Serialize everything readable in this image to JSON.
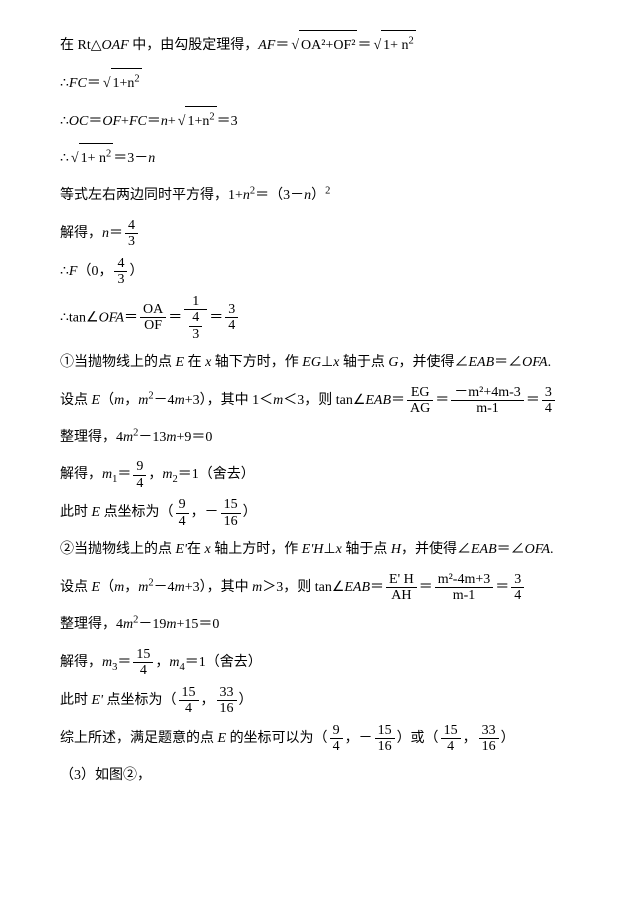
{
  "lines": {
    "l1a": "在 Rt△",
    "l1b": "OAF",
    "l1c": " 中，由勾股定理得，",
    "l1d": "AF",
    "l1e": "＝",
    "l1_sqrt1": "OA²+OF²",
    "l1f": "＝",
    "l1_sqrt2_a": "1+ n",
    "l1_sqrt2_exp": "2",
    "l2a": "∴",
    "l2b": "FC",
    "l2c": "＝",
    "l2_sqrt_a": "1+n",
    "l2_sqrt_exp": "2",
    "l3a": "∴",
    "l3b": "OC",
    "l3c": "＝",
    "l3d": "OF",
    "l3e": "+",
    "l3f": "FC",
    "l3g": "＝",
    "l3h": "n",
    "l3i": "+",
    "l3_sqrt_a": "1+n",
    "l3_sqrt_exp": "2",
    "l3j": "＝3",
    "l4a": "∴",
    "l4_sqrt_a": "1+ n",
    "l4_sqrt_exp": "2",
    "l4b": "＝3－",
    "l4c": "n",
    "l5a": "等式左右两边同时平方得，1+",
    "l5b": "n",
    "l5c": "2",
    "l5d": "＝（3－",
    "l5e": "n",
    "l5f": "）",
    "l5g": "2",
    "l6a": "解得，",
    "l6b": "n",
    "l6c": "＝",
    "l6_num": "4",
    "l6_den": "3",
    "l7a": "∴",
    "l7b": "F",
    "l7c": "（0，",
    "l7_num": "4",
    "l7_den": "3",
    "l7d": "）",
    "l8a": "∴tan∠",
    "l8b": "OFA",
    "l8c": "＝",
    "l8f1_num": "OA",
    "l8f1_den": "OF",
    "l8d": "＝",
    "l8f2_num": "1",
    "l8f2_den_num": "4",
    "l8f2_den_den": "3",
    "l8e": "＝",
    "l8f3_num": "3",
    "l8f3_den": "4",
    "l9a": "①当抛物线上的点 ",
    "l9b": "E",
    "l9c": " 在 ",
    "l9d": "x",
    "l9e": " 轴下方时，作 ",
    "l9f": "EG",
    "l9g": "⊥",
    "l9h": "x",
    "l9i": " 轴于点 ",
    "l9j": "G",
    "l9k": "，并使得∠",
    "l9l": "EAB",
    "l9m": "＝∠",
    "l9n": "OFA",
    "l9o": ".",
    "l10a": "设点 ",
    "l10b": "E",
    "l10c": "（",
    "l10d": "m",
    "l10e": "，",
    "l10f": "m",
    "l10g": "2",
    "l10h": "－4",
    "l10i": "m",
    "l10j": "+3），其中 1＜",
    "l10k": "m",
    "l10l": "＜3，则 tan∠",
    "l10m": "EAB",
    "l10n": "＝",
    "l10f1_num": "EG",
    "l10f1_den": "AG",
    "l10o": "＝",
    "l10f2_num": "－m²+4m-3",
    "l10f2_den": "m-1",
    "l10p": "＝",
    "l10f3_num": "3",
    "l10f3_den": "4",
    "l11a": "整理得，4",
    "l11b": "m",
    "l11c": "2",
    "l11d": "－13",
    "l11e": "m",
    "l11f": "+9＝0",
    "l12a": "解得，",
    "l12b": "m",
    "l12c": "1",
    "l12d": "＝",
    "l12_num": "9",
    "l12_den": "4",
    "l12e": "，",
    "l12f": "m",
    "l12g": "2",
    "l12h": "＝1（舍去）",
    "l13a": "此时 ",
    "l13b": "E",
    "l13c": " 点坐标为（",
    "l13f1_num": "9",
    "l13f1_den": "4",
    "l13d": "，－",
    "l13f2_num": "15",
    "l13f2_den": "16",
    "l13e": "）",
    "l14a": "②当抛物线上的点 ",
    "l14b": "E'",
    "l14c": "在 ",
    "l14d": "x",
    "l14e": " 轴上方时，作 ",
    "l14f": "E'H",
    "l14g": "⊥",
    "l14h": "x",
    "l14i": " 轴于点 ",
    "l14j": "H",
    "l14k": "，并使得∠",
    "l14l": "EAB",
    "l14m": "＝∠",
    "l14n": "OFA",
    "l14o": ".",
    "l15a": "设点 ",
    "l15b": "E",
    "l15c": "（",
    "l15d": "m",
    "l15e": "，",
    "l15f": "m",
    "l15g": "2",
    "l15h": "－4",
    "l15i": "m",
    "l15j": "+3），其中 ",
    "l15k": "m",
    "l15l": "＞3，则 tan∠",
    "l15m": "EAB",
    "l15n": "＝",
    "l15f1_num": "E' H",
    "l15f1_den": "AH",
    "l15o": "＝",
    "l15f2_num": "m²-4m+3",
    "l15f2_den": "m-1",
    "l15p": "＝",
    "l15f3_num": "3",
    "l15f3_den": "4",
    "l16a": "整理得，4",
    "l16b": "m",
    "l16c": "2",
    "l16d": "－19",
    "l16e": "m",
    "l16f": "+15＝0",
    "l17a": "解得，",
    "l17b": "m",
    "l17c": "3",
    "l17d": "＝",
    "l17_num": "15",
    "l17_den": "4",
    "l17e": "，",
    "l17f": "m",
    "l17g": "4",
    "l17h": "＝1（舍去）",
    "l18a": "此时 ",
    "l18b": "E'",
    "l18c": " 点坐标为（",
    "l18f1_num": "15",
    "l18f1_den": "4",
    "l18d": "，",
    "l18f2_num": "33",
    "l18f2_den": "16",
    "l18e": "）",
    "l19a": "综上所述，满足题意的点 ",
    "l19b": "E",
    "l19c": " 的坐标可以为（",
    "l19f1_num": "9",
    "l19f1_den": "4",
    "l19d": "，－",
    "l19f2_num": "15",
    "l19f2_den": "16",
    "l19e": "）或（",
    "l19f3_num": "15",
    "l19f3_den": "4",
    "l19f": "，",
    "l19f4_num": "33",
    "l19f4_den": "16",
    "l19g": "）",
    "l20a": "（3）如图②，"
  }
}
